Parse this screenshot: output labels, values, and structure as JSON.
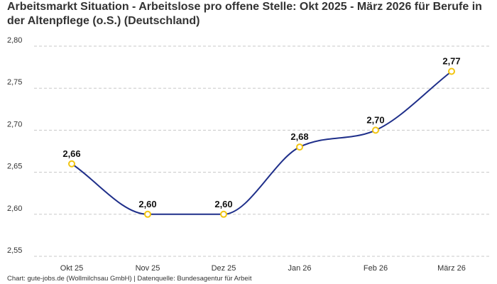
{
  "title": "Arbeitsmarkt Situation - Arbeitslose pro offene Stelle: Okt 2025 - März 2026 für Berufe in der Altenpflege (o.S.) (Deutschland)",
  "footer": "Chart: gute-jobs.de (Wollmilchsau GmbH) | Datenquelle: Bundesagentur für Arbeit",
  "chart_data": {
    "type": "line",
    "title": "Arbeitsmarkt Situation - Arbeitslose pro offene Stelle: Okt 2025 - März 2026 für Berufe in der Altenpflege (o.S.) (Deutschland)",
    "xlabel": "",
    "ylabel": "",
    "categories": [
      "Okt 25",
      "Nov 25",
      "Dez 25",
      "Jan 26",
      "Feb 26",
      "März 26"
    ],
    "values": [
      2.66,
      2.6,
      2.6,
      2.68,
      2.7,
      2.77
    ],
    "data_labels": [
      "2,66",
      "2,60",
      "2,60",
      "2,68",
      "2,70",
      "2,77"
    ],
    "ylim": [
      2.55,
      2.8
    ],
    "yticks": [
      2.55,
      2.6,
      2.65,
      2.7,
      2.75,
      2.8
    ],
    "ytick_labels": [
      "2,55",
      "2,60",
      "2,65",
      "2,70",
      "2,75",
      "2,80"
    ],
    "grid": "horizontal dashed",
    "legend": "none",
    "colors": {
      "line": "#1f2f8a",
      "marker": "#f2c511",
      "grid": "#c8c8c8"
    }
  }
}
